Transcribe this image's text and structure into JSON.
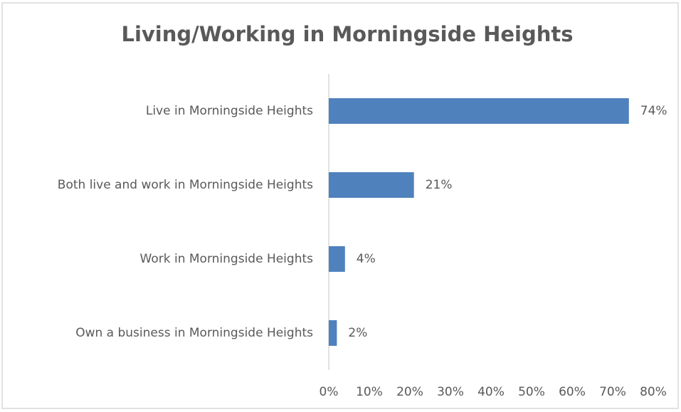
{
  "chart_data": {
    "type": "bar",
    "orientation": "horizontal",
    "title": "Living/Working in Morningside Heights",
    "categories": [
      "Live in Morningside Heights",
      "Both live and work in Morningside Heights",
      "Work in Morningside Heights",
      "Own a business in Morningside Heights"
    ],
    "values": [
      74,
      21,
      4,
      2
    ],
    "value_labels": [
      "74%",
      "21%",
      "4%",
      "2%"
    ],
    "color": "#4f81bd",
    "xlim": [
      0,
      80
    ],
    "xticks": [
      {
        "value": 0,
        "label": "0%"
      },
      {
        "value": 10,
        "label": "10%"
      },
      {
        "value": 20,
        "label": "20%"
      },
      {
        "value": 30,
        "label": "30%"
      },
      {
        "value": 40,
        "label": "40%"
      },
      {
        "value": 50,
        "label": "50%"
      },
      {
        "value": 60,
        "label": "60%"
      },
      {
        "value": 70,
        "label": "70%"
      },
      {
        "value": 80,
        "label": "80%"
      }
    ],
    "grid": false
  }
}
